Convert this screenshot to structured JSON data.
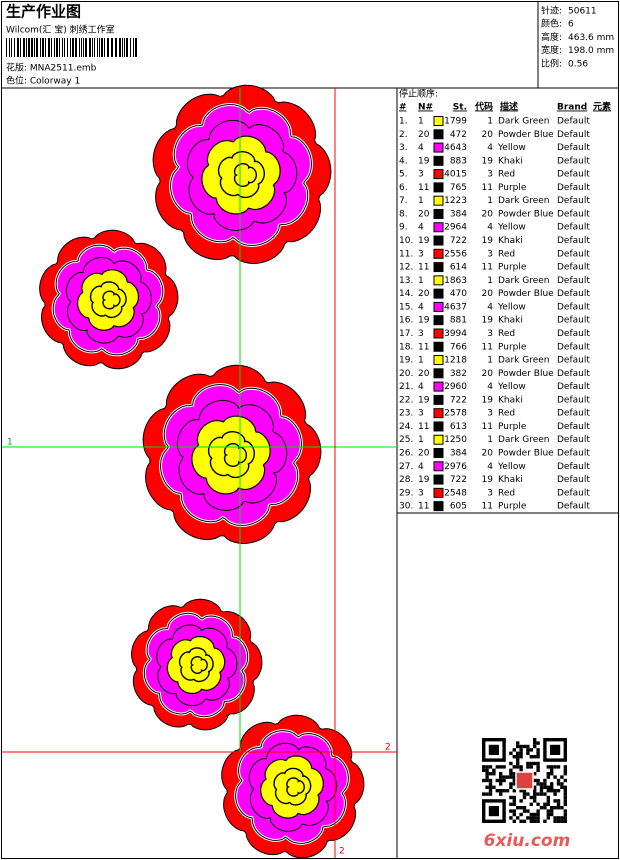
{
  "header": {
    "title": "生产作业图",
    "studio": "Wilcom(汇 宝) 刺绣工作室",
    "design": "花版:  MNA2511.emb",
    "colorway": "色位:  Colorway 1"
  },
  "info": [
    {
      "label": "针迹:",
      "value": "50611"
    },
    {
      "label": "颜色:",
      "value": "6"
    },
    {
      "label": "高度:",
      "value": "463.6 mm"
    },
    {
      "label": "宽度:",
      "value": "198.0 mm"
    },
    {
      "label": "比例:",
      "value": "0.56"
    }
  ],
  "design": {
    "marker_1": "1",
    "marker_2h": "2",
    "marker_2v": "2"
  },
  "table": {
    "title": "停止顺序:",
    "headers": [
      "#",
      "N#",
      "St.",
      "代码",
      "描述",
      "Brand",
      "元素"
    ],
    "rows": [
      {
        "no": "1.",
        "n": "1",
        "color": "#ffff00",
        "st": "1799",
        "code": "1",
        "desc": "Dark Green",
        "brand": "Default"
      },
      {
        "no": "2.",
        "n": "20",
        "color": "#000000",
        "st": "472",
        "code": "20",
        "desc": "Powder Blue",
        "brand": "Default"
      },
      {
        "no": "3.",
        "n": "4",
        "color": "#ff00ff",
        "st": "4643",
        "code": "4",
        "desc": "Yellow",
        "brand": "Default"
      },
      {
        "no": "4.",
        "n": "19",
        "color": "#000000",
        "st": "883",
        "code": "19",
        "desc": "Khaki",
        "brand": "Default"
      },
      {
        "no": "5.",
        "n": "3",
        "color": "#ff0000",
        "st": "4015",
        "code": "3",
        "desc": "Red",
        "brand": "Default"
      },
      {
        "no": "6.",
        "n": "11",
        "color": "#000000",
        "st": "765",
        "code": "11",
        "desc": "Purple",
        "brand": "Default"
      },
      {
        "no": "7.",
        "n": "1",
        "color": "#ffff00",
        "st": "1223",
        "code": "1",
        "desc": "Dark Green",
        "brand": "Default"
      },
      {
        "no": "8.",
        "n": "20",
        "color": "#000000",
        "st": "384",
        "code": "20",
        "desc": "Powder Blue",
        "brand": "Default"
      },
      {
        "no": "9.",
        "n": "4",
        "color": "#ff00ff",
        "st": "2964",
        "code": "4",
        "desc": "Yellow",
        "brand": "Default"
      },
      {
        "no": "10.",
        "n": "19",
        "color": "#000000",
        "st": "722",
        "code": "19",
        "desc": "Khaki",
        "brand": "Default"
      },
      {
        "no": "11.",
        "n": "3",
        "color": "#ff0000",
        "st": "2556",
        "code": "3",
        "desc": "Red",
        "brand": "Default"
      },
      {
        "no": "12.",
        "n": "11",
        "color": "#000000",
        "st": "614",
        "code": "11",
        "desc": "Purple",
        "brand": "Default"
      },
      {
        "no": "13.",
        "n": "1",
        "color": "#ffff00",
        "st": "1863",
        "code": "1",
        "desc": "Dark Green",
        "brand": "Default"
      },
      {
        "no": "14.",
        "n": "20",
        "color": "#000000",
        "st": "470",
        "code": "20",
        "desc": "Powder Blue",
        "brand": "Default"
      },
      {
        "no": "15.",
        "n": "4",
        "color": "#ff00ff",
        "st": "4637",
        "code": "4",
        "desc": "Yellow",
        "brand": "Default"
      },
      {
        "no": "16.",
        "n": "19",
        "color": "#000000",
        "st": "881",
        "code": "19",
        "desc": "Khaki",
        "brand": "Default"
      },
      {
        "no": "17.",
        "n": "3",
        "color": "#ff0000",
        "st": "3994",
        "code": "3",
        "desc": "Red",
        "brand": "Default"
      },
      {
        "no": "18.",
        "n": "11",
        "color": "#000000",
        "st": "766",
        "code": "11",
        "desc": "Purple",
        "brand": "Default"
      },
      {
        "no": "19.",
        "n": "1",
        "color": "#ffff00",
        "st": "1218",
        "code": "1",
        "desc": "Dark Green",
        "brand": "Default"
      },
      {
        "no": "20.",
        "n": "20",
        "color": "#000000",
        "st": "382",
        "code": "20",
        "desc": "Powder Blue",
        "brand": "Default"
      },
      {
        "no": "21.",
        "n": "4",
        "color": "#ff00ff",
        "st": "2960",
        "code": "4",
        "desc": "Yellow",
        "brand": "Default"
      },
      {
        "no": "22.",
        "n": "19",
        "color": "#000000",
        "st": "722",
        "code": "19",
        "desc": "Khaki",
        "brand": "Default"
      },
      {
        "no": "23.",
        "n": "3",
        "color": "#ff0000",
        "st": "2578",
        "code": "3",
        "desc": "Red",
        "brand": "Default"
      },
      {
        "no": "24.",
        "n": "11",
        "color": "#000000",
        "st": "613",
        "code": "11",
        "desc": "Purple",
        "brand": "Default"
      },
      {
        "no": "25.",
        "n": "1",
        "color": "#ffff00",
        "st": "1250",
        "code": "1",
        "desc": "Dark Green",
        "brand": "Default"
      },
      {
        "no": "26.",
        "n": "20",
        "color": "#000000",
        "st": "384",
        "code": "20",
        "desc": "Powder Blue",
        "brand": "Default"
      },
      {
        "no": "27.",
        "n": "4",
        "color": "#ff00ff",
        "st": "2976",
        "code": "4",
        "desc": "Yellow",
        "brand": "Default"
      },
      {
        "no": "28.",
        "n": "19",
        "color": "#000000",
        "st": "722",
        "code": "19",
        "desc": "Khaki",
        "brand": "Default"
      },
      {
        "no": "29.",
        "n": "3",
        "color": "#ff0000",
        "st": "2548",
        "code": "3",
        "desc": "Red",
        "brand": "Default"
      },
      {
        "no": "30.",
        "n": "11",
        "color": "#000000",
        "st": "605",
        "code": "11",
        "desc": "Purple",
        "brand": "Default"
      }
    ]
  },
  "watermark": "6xiu.com"
}
